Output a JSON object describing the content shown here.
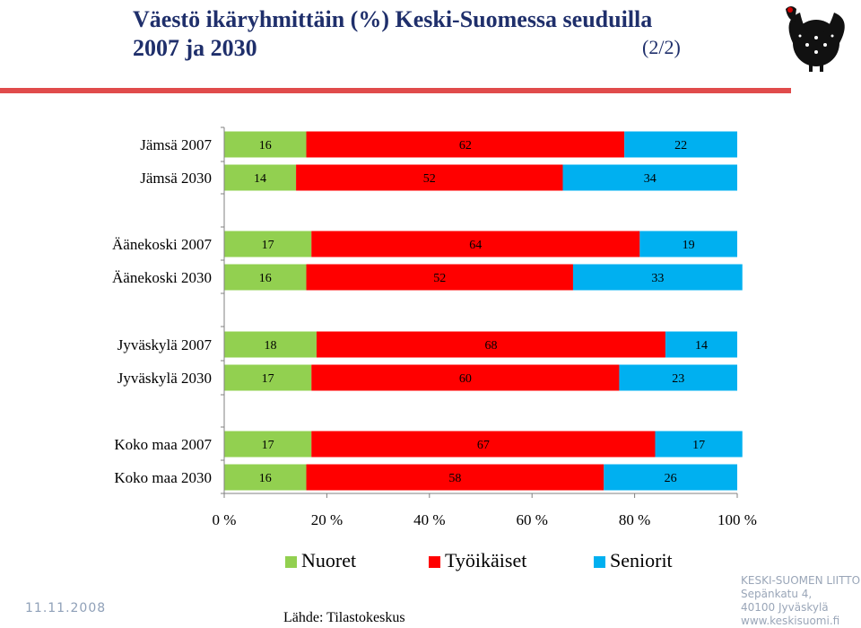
{
  "header": {
    "title_line1": "Väestö ikäryhmittäin (%) Keski-Suomessa seuduilla",
    "title_line2": "2007 ja 2030",
    "page": "(2/2)"
  },
  "colors": {
    "Nuoret": "#92d050",
    "Työikäiset": "#ff0000",
    "Seniorit": "#00b0f0",
    "title": "#1f2f6b",
    "rule": "#e04b4b"
  },
  "chart_data": {
    "type": "bar",
    "orientation": "horizontal",
    "stacked": true,
    "categories": [
      "Jämsä 2007",
      "Jämsä 2030",
      "Äänekoski 2007",
      "Äänekoski 2030",
      "Jyväskylä 2007",
      "Jyväskylä 2030",
      "Koko maa 2007",
      "Koko maa 2030"
    ],
    "series": [
      {
        "name": "Nuoret",
        "values": [
          16,
          14,
          17,
          16,
          18,
          17,
          17,
          16
        ]
      },
      {
        "name": "Työikäiset",
        "values": [
          62,
          52,
          64,
          52,
          68,
          60,
          67,
          58
        ]
      },
      {
        "name": "Seniorit",
        "values": [
          22,
          34,
          19,
          33,
          14,
          23,
          17,
          26
        ]
      }
    ],
    "xlim": [
      0,
      100
    ],
    "xticks": [
      "0 %",
      "20 %",
      "40 %",
      "60 %",
      "80 %",
      "100 %"
    ],
    "legend_position": "bottom"
  },
  "footer": {
    "date": "11.11.2008",
    "source": "Lähde: Tilastokeskus",
    "org_name": "KESKI-SUOMEN LIITTO",
    "org_street": "Sepänkatu 4,",
    "org_city": "40100 Jyväskylä",
    "org_web": "www.keskisuomi.fi"
  }
}
